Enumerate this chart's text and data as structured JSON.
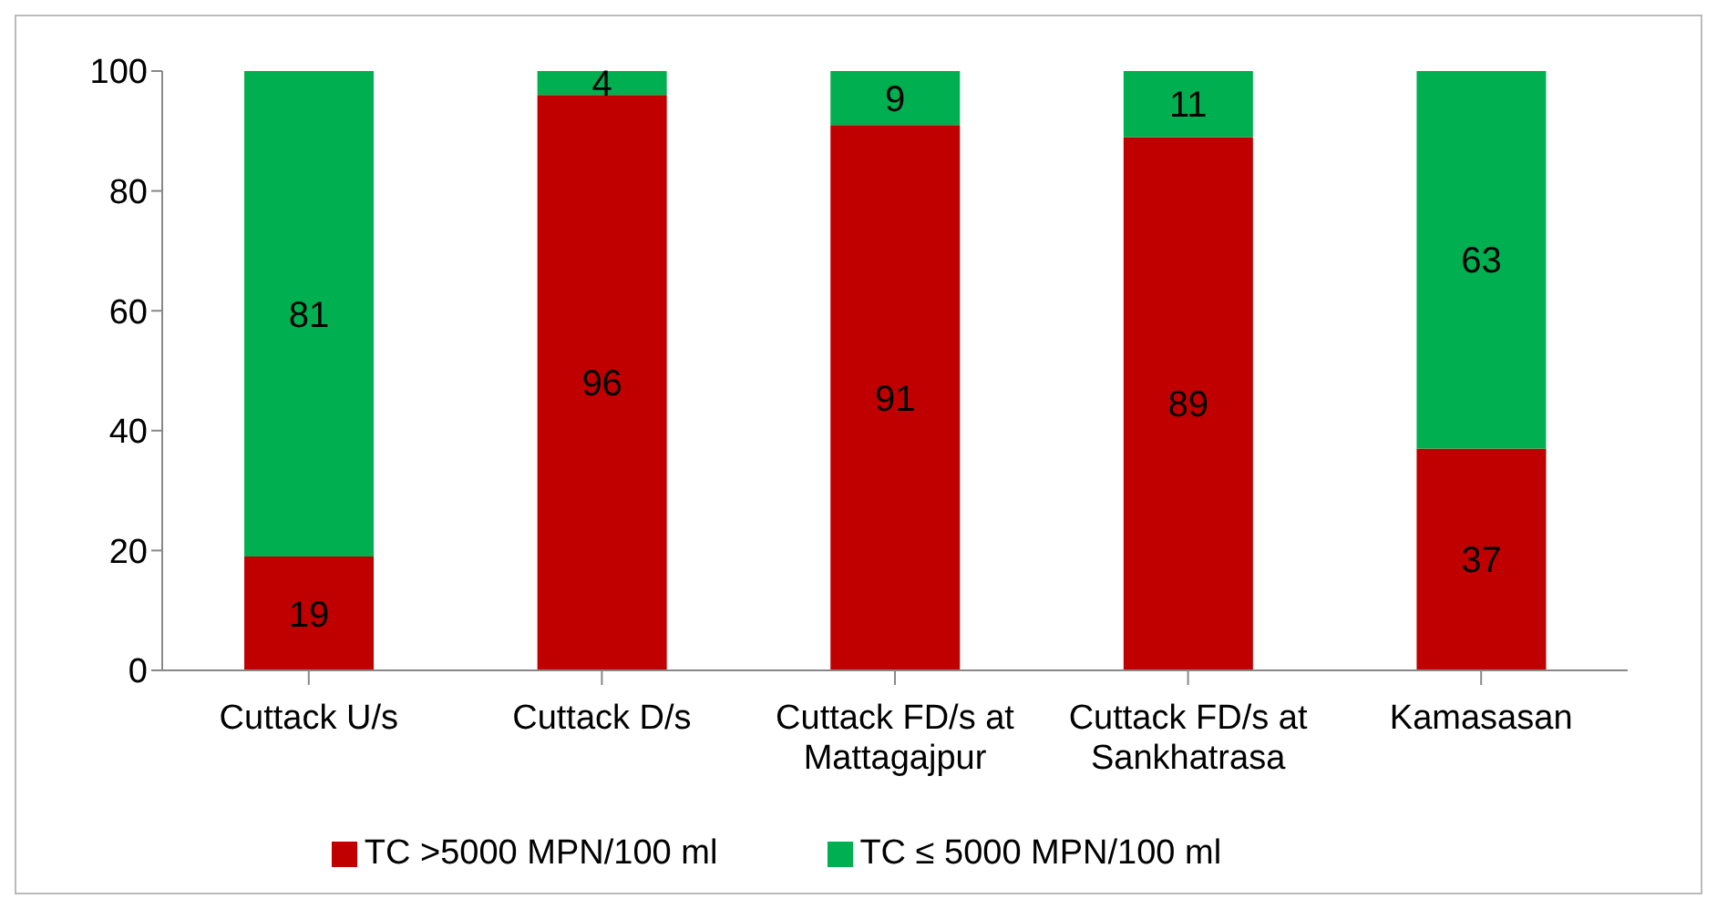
{
  "chart_data": {
    "type": "bar",
    "stacked": true,
    "categories": [
      "Cuttack U/s",
      "Cuttack D/s",
      "Cuttack FD/s at Mattagajpur",
      "Cuttack FD/s at Sankhatrasa",
      "Kamasasan"
    ],
    "series": [
      {
        "name": "TC >5000 MPN/100 ml",
        "color": "#c00000",
        "values": [
          19,
          96,
          91,
          89,
          37
        ]
      },
      {
        "name": "TC ≤ 5000 MPN/100 ml",
        "color": "#00b050",
        "values": [
          81,
          4,
          9,
          11,
          63
        ]
      }
    ],
    "ylim": [
      0,
      100
    ],
    "yticks": [
      0,
      20,
      40,
      60,
      80,
      100
    ],
    "grid": false,
    "legend": "bottom",
    "data_labels": true
  }
}
